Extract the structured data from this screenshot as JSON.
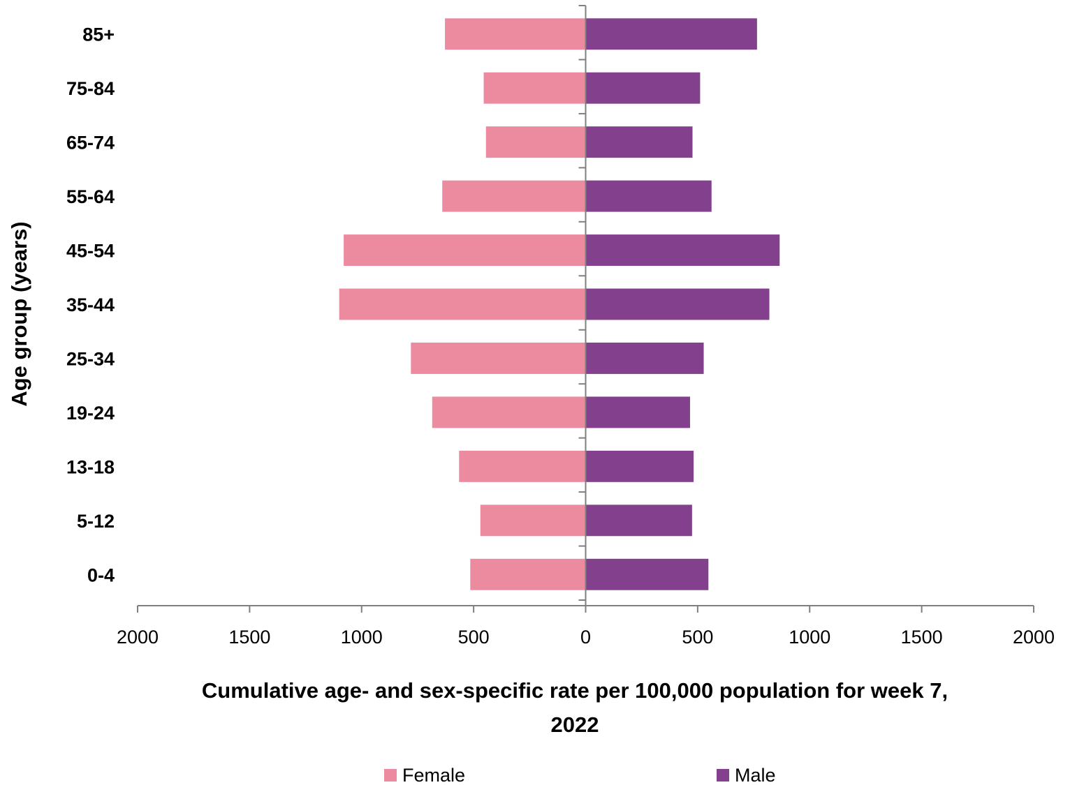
{
  "chart_data": {
    "type": "bar",
    "orientation": "horizontal",
    "layout": "population-pyramid",
    "categories": [
      "0-4",
      "5-12",
      "13-18",
      "19-24",
      "25-34",
      "35-44",
      "45-54",
      "55-64",
      "65-74",
      "75-84",
      "85+"
    ],
    "series": [
      {
        "name": "Female",
        "color": "#EC8BA0",
        "side": "left",
        "values": [
          515,
          470,
          565,
          685,
          780,
          1100,
          1080,
          640,
          445,
          455,
          628
        ]
      },
      {
        "name": "Male",
        "color": "#83418D",
        "side": "right",
        "values": [
          548,
          475,
          482,
          466,
          527,
          820,
          866,
          562,
          477,
          511,
          765
        ]
      }
    ],
    "xlim": [
      -2000,
      2000
    ],
    "xticks": [
      -2000,
      -1500,
      -1000,
      -500,
      0,
      500,
      1000,
      1500,
      2000
    ],
    "xtick_labels": [
      "2000",
      "1500",
      "1000",
      "500",
      "0",
      "500",
      "1000",
      "1500",
      "2000"
    ],
    "xlabel": [
      "Cumulative age- and sex-specific rate per 100,000 population for week 7,",
      "2022"
    ],
    "ylabel": "Age group (years)",
    "title": "",
    "grid": false,
    "legend_position": "bottom",
    "axis_color": "#7F7F7F"
  }
}
